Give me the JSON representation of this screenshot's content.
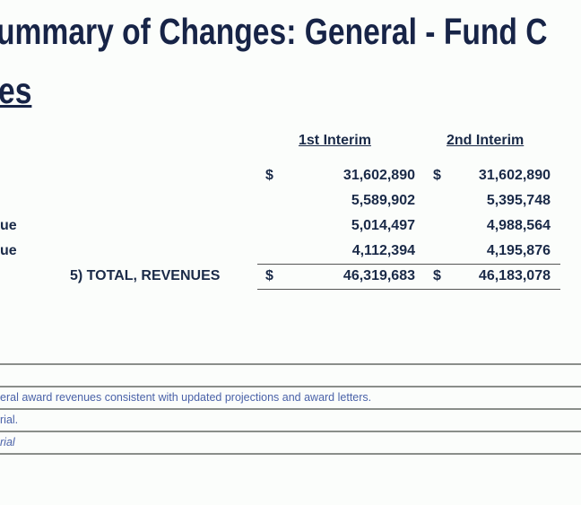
{
  "title": {
    "line1": "ummary of Changes: General - Fund C",
    "line2": "es"
  },
  "table": {
    "headers": [
      "1st Interim",
      "2nd Interim"
    ],
    "rows": [
      {
        "label": "",
        "dollar1": "$",
        "v1": "31,602,890",
        "dollar2": "$",
        "v2": "31,602,890"
      },
      {
        "label": "",
        "dollar1": "",
        "v1": "5,589,902",
        "dollar2": "",
        "v2": "5,395,748"
      },
      {
        "label": "ue",
        "dollar1": "",
        "v1": "5,014,497",
        "dollar2": "",
        "v2": "4,988,564"
      },
      {
        "label": "ue",
        "dollar1": "",
        "v1": "4,112,394",
        "dollar2": "",
        "v2": "4,195,876"
      },
      {
        "label": "5) TOTAL, REVENUES",
        "dollar1": "$",
        "v1": "46,319,683",
        "dollar2": "$",
        "v2": "46,183,078"
      }
    ]
  },
  "notes": [
    "eral award revenues consistent with updated projections and award letters.",
    "rial.",
    "rial"
  ]
}
